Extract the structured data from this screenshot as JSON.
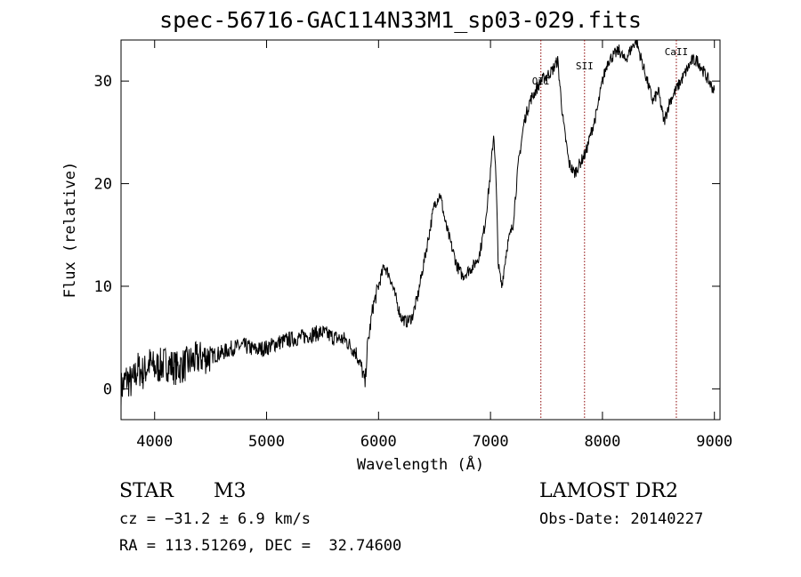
{
  "title": "spec-56716-GAC114N33M1_sp03-029.fits",
  "info": {
    "object_class": "STAR",
    "subclass": "M3",
    "survey": "LAMOST DR2",
    "cz": "cz = −31.2 ± 6.9 km/s",
    "obs_date": "Obs-Date: 20140227",
    "coords": "RA = 113.51269, DEC =  32.74600"
  },
  "chart_data": {
    "type": "line",
    "xlabel": "Wavelength (Å)",
    "ylabel": "Flux (relative)",
    "xlim": [
      3700,
      9050
    ],
    "ylim": [
      -3,
      34
    ],
    "xticks": [
      4000,
      5000,
      6000,
      7000,
      8000,
      9000
    ],
    "yticks": [
      0,
      10,
      20,
      30
    ],
    "line_color": "#000000",
    "marker_color": "#8b0000",
    "lines": [
      {
        "label": "OII",
        "x": 7450
      },
      {
        "label": "SII",
        "x": 7840
      },
      {
        "label": "CaII",
        "x": 8660
      }
    ],
    "series": [
      {
        "x": [
          3700,
          3750,
          3800,
          3850,
          3900,
          3950,
          4000,
          4100,
          4200,
          4300,
          4400,
          4500,
          4600,
          4700,
          4800,
          4900,
          5000,
          5100,
          5200,
          5300,
          5400,
          5500,
          5600,
          5700,
          5800,
          5850,
          5880,
          5900,
          5950,
          6000,
          6050,
          6100,
          6150,
          6200,
          6250,
          6300,
          6350,
          6400,
          6450,
          6500,
          6550,
          6600,
          6650,
          6700,
          6750,
          6800,
          6850,
          6900,
          6950,
          7000,
          7030,
          7050,
          7070,
          7100,
          7150,
          7200,
          7250,
          7300,
          7350,
          7400,
          7450,
          7500,
          7550,
          7600,
          7650,
          7700,
          7750,
          7800,
          7850,
          7900,
          7950,
          8000,
          8050,
          8100,
          8150,
          8200,
          8250,
          8300,
          8350,
          8400,
          8450,
          8500,
          8550,
          8600,
          8650,
          8700,
          8750,
          8800,
          8850,
          8900,
          8950,
          9000
        ],
        "y": [
          0,
          1,
          0.5,
          2,
          1.5,
          2.5,
          2,
          2.5,
          2,
          2.5,
          3,
          3.2,
          3.5,
          4,
          4.2,
          3.8,
          4,
          4.5,
          4.8,
          5,
          5.3,
          5.5,
          5,
          4.8,
          3.5,
          2,
          0.5,
          4,
          8,
          10,
          12,
          11,
          9,
          7,
          6.5,
          7,
          9,
          12,
          15,
          18,
          19,
          16,
          14,
          12,
          11,
          11.5,
          12,
          13,
          16,
          21,
          25,
          20,
          12,
          10,
          14,
          16,
          22,
          26,
          28,
          29,
          30,
          30.5,
          31,
          32,
          26,
          22,
          21,
          22,
          23,
          25,
          27,
          30,
          32,
          32.5,
          33,
          32,
          33,
          34,
          32,
          30,
          28,
          29,
          26,
          28,
          29,
          30,
          31,
          32,
          32,
          31,
          30,
          29
        ]
      }
    ]
  }
}
